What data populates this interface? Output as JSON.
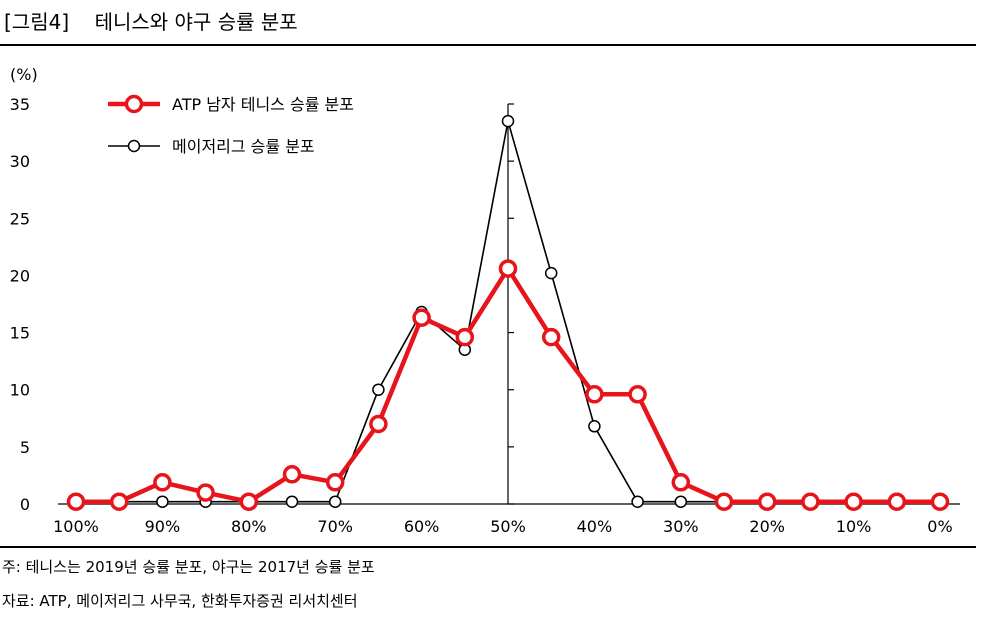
{
  "figure": {
    "label": "[그림4]",
    "title": "테니스와 야구 승률 분포",
    "note": "주: 테니스는 2019년 승률 분포, 야구는 2017년 승률 분포",
    "source": "자료: ATP, 메이저리그 사무국, 한화투자증권 리서치센터"
  },
  "chart_data": {
    "type": "line",
    "y_unit_label": "(%)",
    "x_tick_labels": [
      "100%",
      "90%",
      "80%",
      "70%",
      "60%",
      "50%",
      "40%",
      "30%",
      "20%",
      "10%",
      "0%"
    ],
    "y_ticks": [
      0,
      5,
      10,
      15,
      20,
      25,
      30,
      35
    ],
    "ylim": [
      0,
      35
    ],
    "xlim": [
      100,
      0
    ],
    "legend_position": "top-left",
    "series": [
      {
        "name": "ATP 남자 테니스 승률 분포",
        "color": "#e8141b",
        "x": [
          100,
          95,
          90,
          85,
          80,
          75,
          70,
          65,
          60,
          55,
          50,
          45,
          40,
          35,
          30,
          25,
          20,
          15,
          10,
          5,
          0
        ],
        "values": [
          0.2,
          0.2,
          1.9,
          1.0,
          0.2,
          2.6,
          1.9,
          7.0,
          16.3,
          14.6,
          20.6,
          14.6,
          9.6,
          9.6,
          1.9,
          0.2,
          0.2,
          0.2,
          0.2,
          0.2,
          0.2
        ]
      },
      {
        "name": "메이저리그 승률 분포",
        "color": "#000000",
        "x": [
          100,
          95,
          90,
          85,
          80,
          75,
          70,
          65,
          60,
          55,
          50,
          45,
          40,
          35,
          30,
          25,
          20,
          15,
          10,
          5,
          0
        ],
        "values": [
          0.2,
          0.2,
          0.2,
          0.2,
          0.2,
          0.2,
          0.2,
          10.0,
          16.8,
          13.5,
          33.5,
          20.2,
          6.8,
          0.2,
          0.2,
          0.2,
          0.2,
          0.2,
          0.2,
          0.2,
          0.2
        ]
      }
    ]
  }
}
